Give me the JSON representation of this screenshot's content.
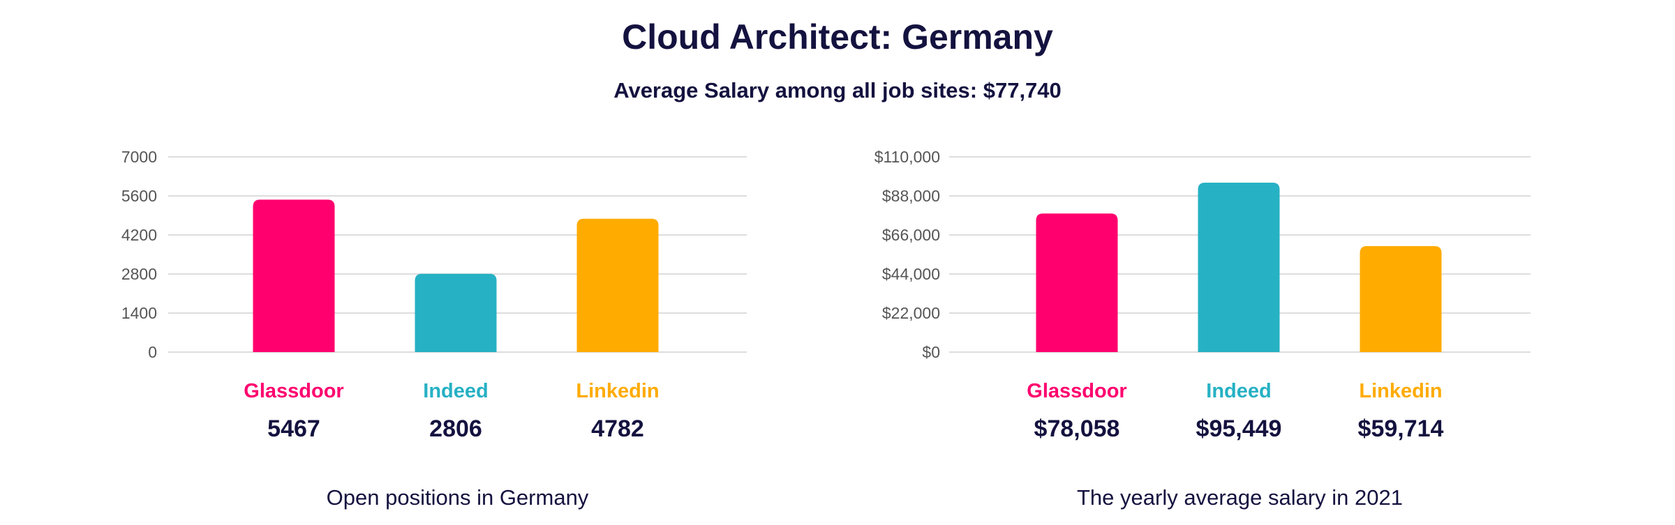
{
  "title": "Cloud Architect: Germany",
  "subtitle": "Average Salary among all job sites: $77,740",
  "colors": {
    "glassdoor": "#ff006e",
    "indeed": "#26b1c4",
    "linkedin": "#ffab00",
    "text": "#14123f",
    "grid": "#dddddd",
    "tick": "#555555"
  },
  "chart_data": [
    {
      "type": "bar",
      "caption": "Open positions in Germany",
      "categories": [
        "Glassdoor",
        "Indeed",
        "Linkedin"
      ],
      "values": [
        5467,
        2806,
        4782
      ],
      "value_labels": [
        "5467",
        "2806",
        "4782"
      ],
      "ylim": [
        0,
        7000
      ],
      "yticks": [
        0,
        1400,
        2800,
        4200,
        5600,
        7000
      ],
      "ytick_labels": [
        "0",
        "1400",
        "2800",
        "4200",
        "5600",
        "7000"
      ],
      "grid": true
    },
    {
      "type": "bar",
      "caption": "The yearly average salary in 2021",
      "categories": [
        "Glassdoor",
        "Indeed",
        "Linkedin"
      ],
      "values": [
        78058,
        95449,
        59714
      ],
      "value_labels": [
        "$78,058",
        "$95,449",
        "$59,714"
      ],
      "ylim": [
        0,
        110000
      ],
      "yticks": [
        0,
        22000,
        44000,
        66000,
        88000,
        110000
      ],
      "ytick_labels": [
        "$0",
        "$22,000",
        "$44,000",
        "$66,000",
        "$88,000",
        "$110,000"
      ],
      "grid": true
    }
  ]
}
